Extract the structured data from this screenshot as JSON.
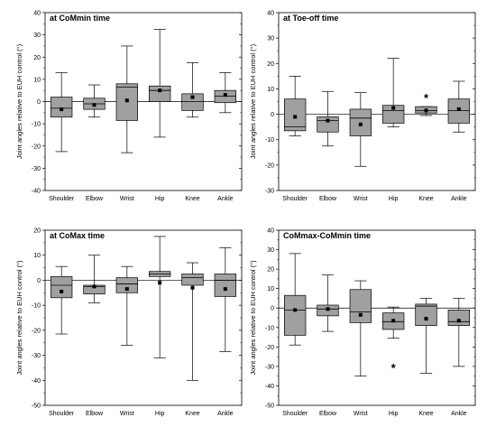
{
  "chart_data": [
    {
      "type": "box",
      "title": "at CoMmin time",
      "ylabel": "Joint angles relative to EUH control (°)",
      "ylim": [
        -40,
        40
      ],
      "yticks": [
        -40,
        -30,
        -20,
        -10,
        0,
        10,
        20,
        30,
        40
      ],
      "categories": [
        "Shoulder",
        "Elbow",
        "Wrist",
        "Hip",
        "Knee",
        "Ankle"
      ],
      "boxes": [
        {
          "min": -22.5,
          "q1": -7,
          "median": -3,
          "q3": 2,
          "max": 13,
          "mean": -3.5
        },
        {
          "min": -7,
          "q1": -3.5,
          "median": -1,
          "q3": 1.5,
          "max": 7.5,
          "mean": -1.5
        },
        {
          "min": -23,
          "q1": -8.5,
          "median": 6.5,
          "q3": 8,
          "max": 25,
          "mean": 0.5
        },
        {
          "min": -16,
          "q1": 0,
          "median": 5,
          "q3": 7,
          "max": 32.5,
          "mean": 5
        },
        {
          "min": -7,
          "q1": -4,
          "median": 0,
          "q3": 3.5,
          "max": 17.5,
          "mean": 2
        },
        {
          "min": -5,
          "q1": -0.5,
          "median": 2.5,
          "q3": 5,
          "max": 13,
          "mean": 3
        }
      ],
      "annotations": []
    },
    {
      "type": "box",
      "title": "at Toe-off time",
      "ylabel": "Joint angles relative to EUH control (°)",
      "ylim": [
        -30,
        40
      ],
      "yticks": [
        -30,
        -20,
        -10,
        0,
        10,
        20,
        30,
        40
      ],
      "categories": [
        "Shoulder",
        "Elbow",
        "Wrist",
        "Hip",
        "Knee",
        "Ankle"
      ],
      "boxes": [
        {
          "min": -8.5,
          "q1": -6.5,
          "median": -5,
          "q3": 6,
          "max": 15,
          "mean": -1
        },
        {
          "min": -12.5,
          "q1": -7,
          "median": -2.5,
          "q3": -1,
          "max": 9,
          "mean": -2.5
        },
        {
          "min": -20.5,
          "q1": -8.5,
          "median": -1.5,
          "q3": 2,
          "max": 8.5,
          "mean": -4
        },
        {
          "min": -5,
          "q1": -3.5,
          "median": 1.5,
          "q3": 3.5,
          "max": 22,
          "mean": 2.5
        },
        {
          "min": -0.5,
          "q1": 0.5,
          "median": 1.5,
          "q3": 3,
          "max": 3,
          "mean": 1.5
        },
        {
          "min": -7,
          "q1": -3.5,
          "median": 1.5,
          "q3": 6,
          "max": 13,
          "mean": 2
        }
      ],
      "annotations": [
        {
          "text": "*",
          "category": "Knee",
          "y": 7
        }
      ]
    },
    {
      "type": "box",
      "title": "at CoMax time",
      "ylabel": "Joint angles relative to EUH control (°)",
      "ylim": [
        -50,
        20
      ],
      "yticks": [
        -50,
        -40,
        -30,
        -20,
        -10,
        0,
        10,
        20
      ],
      "categories": [
        "Shoulder",
        "Elbow",
        "Wrist",
        "Hip",
        "Knee",
        "Ankle"
      ],
      "boxes": [
        {
          "min": -21.5,
          "q1": -7,
          "median": -2,
          "q3": 1.5,
          "max": 5.5,
          "mean": -4.5
        },
        {
          "min": -9,
          "q1": -5.5,
          "median": -2.5,
          "q3": -2,
          "max": 10,
          "mean": -2.5
        },
        {
          "min": -26,
          "q1": -5,
          "median": -1.5,
          "q3": 1,
          "max": 5.5,
          "mean": -3.5
        },
        {
          "min": -31,
          "q1": 1.5,
          "median": 2.5,
          "q3": 3.5,
          "max": 17.5,
          "mean": -1
        },
        {
          "min": -40,
          "q1": -2,
          "median": 1,
          "q3": 2.5,
          "max": 7,
          "mean": -3
        },
        {
          "min": -28.5,
          "q1": -6.5,
          "median": 0,
          "q3": 2.5,
          "max": 13,
          "mean": -3.5
        }
      ],
      "annotations": []
    },
    {
      "type": "box",
      "title": "CoMmax-CoMmin time",
      "ylabel": "Joint angles relative to EUH control (°)",
      "ylim": [
        -50,
        40
      ],
      "yticks": [
        -50,
        -40,
        -30,
        -20,
        -10,
        0,
        10,
        20,
        30,
        40
      ],
      "categories": [
        "Shoulder",
        "Elbow",
        "Wrist",
        "Hip",
        "Knee",
        "Ankle"
      ],
      "boxes": [
        {
          "min": -19,
          "q1": -14,
          "median": -1,
          "q3": 6.5,
          "max": 28,
          "mean": -1
        },
        {
          "min": -12,
          "q1": -4,
          "median": -0.5,
          "q3": 1.5,
          "max": 17,
          "mean": -0.5
        },
        {
          "min": -35,
          "q1": -7.5,
          "median": -2,
          "q3": 9.5,
          "max": 14,
          "mean": -3.5
        },
        {
          "min": -15.5,
          "q1": -11,
          "median": -7,
          "q3": -2.5,
          "max": 0.5,
          "mean": -6.5
        },
        {
          "min": -33.5,
          "q1": -9,
          "median": 1,
          "q3": 2,
          "max": 5,
          "mean": -5.5
        },
        {
          "min": -30,
          "q1": -9,
          "median": -7,
          "q3": -1,
          "max": 5,
          "mean": -6.5
        }
      ],
      "annotations": [
        {
          "text": "*",
          "category": "Hip",
          "y": -30
        }
      ]
    }
  ]
}
